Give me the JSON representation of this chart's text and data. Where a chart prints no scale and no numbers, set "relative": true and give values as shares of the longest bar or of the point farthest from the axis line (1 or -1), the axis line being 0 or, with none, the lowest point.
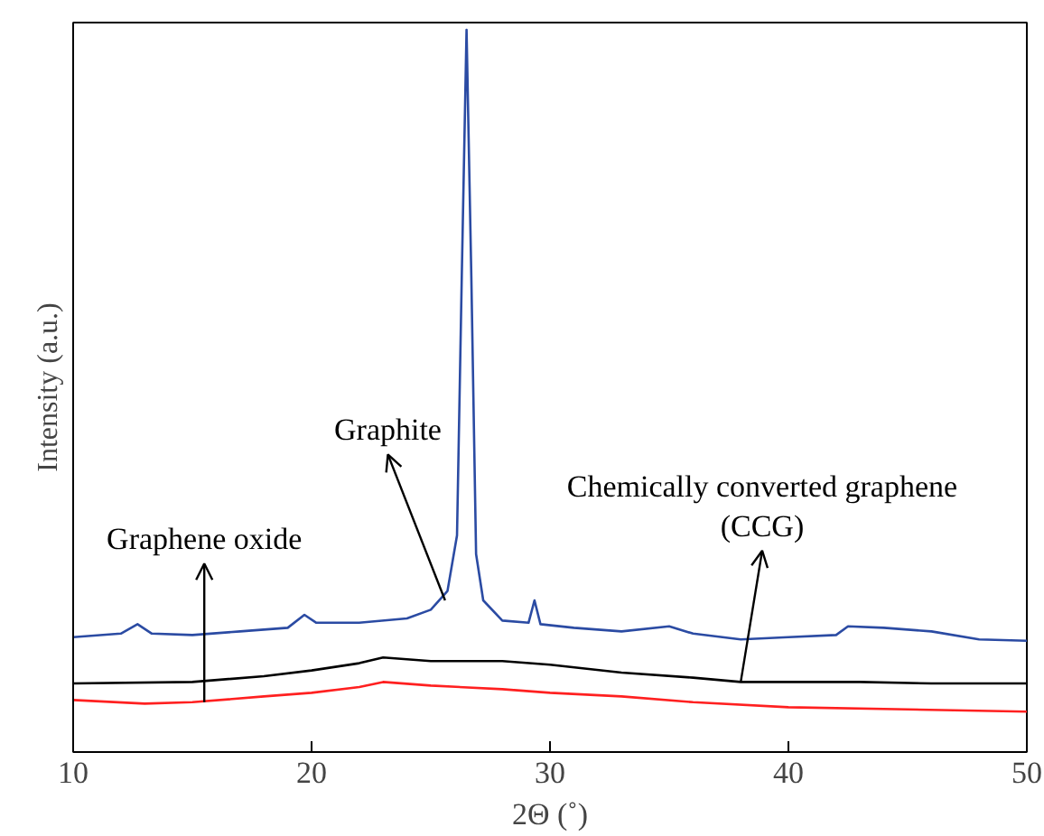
{
  "chart_data": {
    "type": "line",
    "relative": true,
    "xlabel": "2Θ (˚)",
    "ylabel": "Intensity (a.u.)",
    "xlim": [
      10,
      50
    ],
    "xticks": [
      10,
      20,
      30,
      40,
      50
    ],
    "tick_labels": "x",
    "grid": false,
    "series": [
      {
        "color": "#2b4ba3",
        "x": [
          10,
          12,
          12.7,
          13.3,
          15,
          17,
          19,
          19.7,
          20.2,
          22,
          24,
          25,
          25.7,
          26.1,
          26.3,
          26.5,
          26.7,
          26.9,
          27.2,
          28,
          29.1,
          29.35,
          29.6,
          31,
          33,
          35,
          36,
          38,
          40,
          42,
          42.5,
          44,
          46,
          48,
          50
        ],
        "values": [
          0.159,
          0.164,
          0.177,
          0.164,
          0.162,
          0.167,
          0.172,
          0.19,
          0.179,
          0.179,
          0.185,
          0.197,
          0.223,
          0.3,
          0.659,
          1.0,
          0.659,
          0.274,
          0.21,
          0.182,
          0.179,
          0.21,
          0.177,
          0.172,
          0.167,
          0.174,
          0.164,
          0.156,
          0.159,
          0.162,
          0.174,
          0.172,
          0.167,
          0.156,
          0.154
        ]
      },
      {
        "color": "#000000",
        "x": [
          10,
          15,
          18,
          20,
          22,
          23,
          25,
          28,
          30,
          33,
          36,
          38,
          40,
          43,
          46,
          50
        ],
        "values": [
          0.095,
          0.097,
          0.105,
          0.113,
          0.123,
          0.131,
          0.126,
          0.126,
          0.121,
          0.11,
          0.103,
          0.097,
          0.097,
          0.097,
          0.095,
          0.095
        ]
      },
      {
        "color": "#ff2020",
        "x": [
          10,
          13,
          15,
          18,
          20,
          22,
          23,
          25,
          28,
          30,
          33,
          36,
          40,
          45,
          50
        ],
        "values": [
          0.072,
          0.067,
          0.069,
          0.077,
          0.082,
          0.09,
          0.097,
          0.092,
          0.087,
          0.082,
          0.077,
          0.069,
          0.062,
          0.059,
          0.056
        ]
      }
    ],
    "annotations": [
      {
        "text": "Graphite",
        "x": 25.6,
        "y": 0.21
      },
      {
        "text": "Graphene oxide",
        "x": 15.5,
        "y": 0.069
      },
      {
        "text": "Chemically converted graphene\n(CCG)",
        "x": 38,
        "y": 0.097
      }
    ]
  }
}
